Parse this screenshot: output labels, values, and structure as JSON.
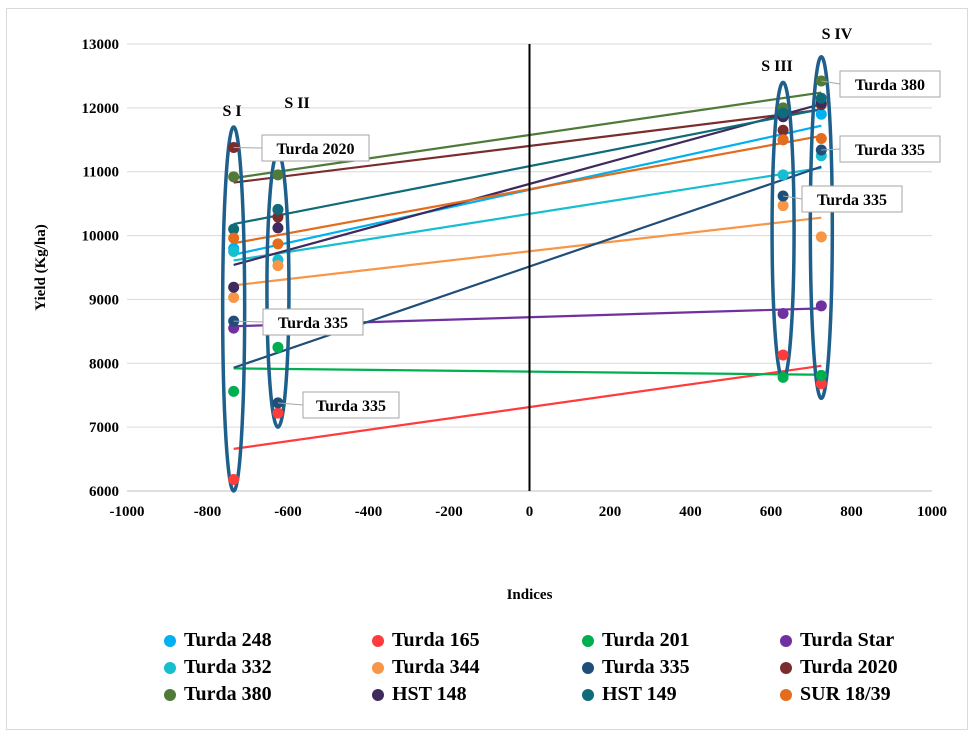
{
  "chart_data": {
    "type": "scatter",
    "title": "",
    "xlabel": "Indices",
    "ylabel": "Yield (Kg/ha)",
    "xlim": [
      -1000,
      1000
    ],
    "ylim": [
      6000,
      13000
    ],
    "xticks": [
      -1000,
      -800,
      -600,
      -400,
      -200,
      0,
      200,
      400,
      600,
      800,
      1000
    ],
    "yticks": [
      6000,
      7000,
      8000,
      9000,
      10000,
      11000,
      12000,
      13000
    ],
    "grid": "horizontal",
    "legend_position": "bottom",
    "environment_x": [
      -735,
      -625,
      630,
      725
    ],
    "groups": [
      "S I",
      "S II",
      "S III",
      "S IV"
    ],
    "callouts": [
      "Turda 2020",
      "Turda 335",
      "Turda 335",
      "Turda 380",
      "Turda 335",
      "Turda 335"
    ],
    "series": [
      {
        "name": "Turda 248",
        "color": "#00B0F0",
        "values": [
          9800,
          10400,
          11500,
          11900
        ],
        "fit": [
          9700,
          11720
        ]
      },
      {
        "name": "Turda 165",
        "color": "#FF3B3B",
        "values": [
          6180,
          7220,
          8130,
          7680
        ],
        "fit": [
          6660,
          7960
        ]
      },
      {
        "name": "Turda 201",
        "color": "#00B050",
        "values": [
          7560,
          8250,
          7780,
          7810
        ],
        "fit": [
          7920,
          7820
        ]
      },
      {
        "name": "Turda Star",
        "color": "#7030A0",
        "values": [
          8550,
          8680,
          8780,
          8900
        ],
        "fit": [
          8580,
          8860
        ]
      },
      {
        "name": "Turda 332",
        "color": "#17BECF",
        "values": [
          9750,
          9620,
          10950,
          11250
        ],
        "fit": [
          9610,
          11060
        ]
      },
      {
        "name": "Turda 344",
        "color": "#F79646",
        "values": [
          9030,
          9530,
          10470,
          9980
        ],
        "fit": [
          9220,
          10280
        ]
      },
      {
        "name": "Turda 335",
        "color": "#1F4E79",
        "values": [
          8660,
          7380,
          10620,
          11340
        ],
        "fit": [
          7930,
          11080
        ]
      },
      {
        "name": "Turda 2020",
        "color": "#7B2C2C",
        "values": [
          11380,
          10290,
          11650,
          12050
        ],
        "fit": [
          10830,
          11970
        ]
      },
      {
        "name": "Turda 380",
        "color": "#4F7A38",
        "values": [
          10920,
          10950,
          12000,
          12420
        ],
        "fit": [
          10900,
          12240
        ]
      },
      {
        "name": "HST 148",
        "color": "#3F2A5E",
        "values": [
          9190,
          10120,
          11860,
          12080
        ],
        "fit": [
          9540,
          12060
        ]
      },
      {
        "name": "HST 149",
        "color": "#0F6A7A",
        "values": [
          10100,
          10410,
          11920,
          12150
        ],
        "fit": [
          10180,
          11980
        ]
      },
      {
        "name": "SUR 18/39",
        "color": "#E36C1D",
        "values": [
          9960,
          9870,
          11500,
          11520
        ],
        "fit": [
          9880,
          11560
        ]
      }
    ]
  }
}
